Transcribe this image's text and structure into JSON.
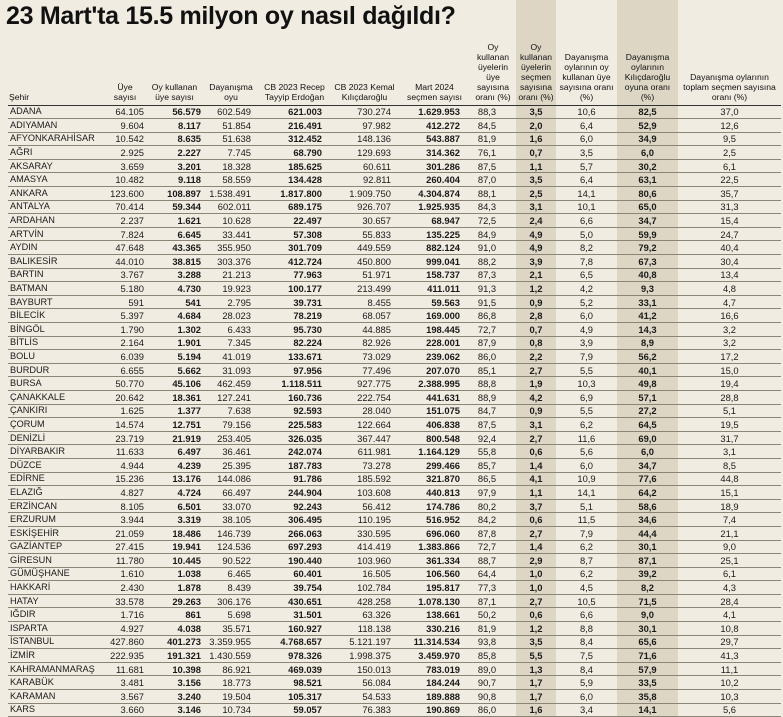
{
  "title": "23 Mart'ta 15.5 milyon oy nasıl dağıldı?",
  "headers": [
    "Şehir",
    "Üye sayısı",
    "Oy kullanan üye sayısı",
    "Dayanışma oyu",
    "CB 2023 Recep Tayyip Erdoğan",
    "CB 2023 Kemal Kılıçdaroğlu",
    "Mart 2024 seçmen sayısı",
    "Oy kullanan üyelerin üye sayısına oranı (%)",
    "Oy kullanan üyelerin seçmen sayısına oranı (%)",
    "Dayanışma oylarının oy kullanan üye sayısına oranı (%)",
    "Dayanışma oylarının Kılıçdaroğlu oyuna oranı (%)",
    "Dayanışma oylarının toplam seçmen sayısına oranı (%)"
  ],
  "rows": [
    [
      "ADANA",
      "64.105",
      "56.579",
      "602.549",
      "621.003",
      "730.274",
      "1.629.953",
      "88,3",
      "3,5",
      "10,6",
      "82,5",
      "37,0"
    ],
    [
      "ADIYAMAN",
      "9.604",
      "8.117",
      "51.854",
      "216.491",
      "97.982",
      "412.272",
      "84,5",
      "2,0",
      "6,4",
      "52,9",
      "12,6"
    ],
    [
      "AFYONKARAHİSAR",
      "10.542",
      "8.635",
      "51.638",
      "312.452",
      "148.136",
      "543.887",
      "81,9",
      "1,6",
      "6,0",
      "34,9",
      "9,5"
    ],
    [
      "AĞRI",
      "2.925",
      "2.227",
      "7.745",
      "68.790",
      "129.693",
      "314.362",
      "76,1",
      "0,7",
      "3,5",
      "6,0",
      "2,5"
    ],
    [
      "AKSARAY",
      "3.659",
      "3.201",
      "18.328",
      "185.625",
      "60.611",
      "301.286",
      "87,5",
      "1,1",
      "5,7",
      "30,2",
      "6,1"
    ],
    [
      "AMASYA",
      "10.482",
      "9.118",
      "58.559",
      "134.428",
      "92.811",
      "260.404",
      "87,0",
      "3,5",
      "6,4",
      "63,1",
      "22,5"
    ],
    [
      "ANKARA",
      "123.600",
      "108.897",
      "1.538.491",
      "1.817.800",
      "1.909.750",
      "4.304.874",
      "88,1",
      "2,5",
      "14,1",
      "80,6",
      "35,7"
    ],
    [
      "ANTALYA",
      "70.414",
      "59.344",
      "602.011",
      "689.175",
      "926.707",
      "1.925.935",
      "84,3",
      "3,1",
      "10,1",
      "65,0",
      "31,3"
    ],
    [
      "ARDAHAN",
      "2.237",
      "1.621",
      "10.628",
      "22.497",
      "30.657",
      "68.947",
      "72,5",
      "2,4",
      "6,6",
      "34,7",
      "15,4"
    ],
    [
      "ARTVİN",
      "7.824",
      "6.645",
      "33.441",
      "57.308",
      "55.833",
      "135.225",
      "84,9",
      "4,9",
      "5,0",
      "59,9",
      "24,7"
    ],
    [
      "AYDIN",
      "47.648",
      "43.365",
      "355.950",
      "301.709",
      "449.559",
      "882.124",
      "91,0",
      "4,9",
      "8,2",
      "79,2",
      "40,4"
    ],
    [
      "BALIKESİR",
      "44.010",
      "38.815",
      "303.376",
      "412.724",
      "450.800",
      "999.041",
      "88,2",
      "3,9",
      "7,8",
      "67,3",
      "30,4"
    ],
    [
      "BARTIN",
      "3.767",
      "3.288",
      "21.213",
      "77.963",
      "51.971",
      "158.737",
      "87,3",
      "2,1",
      "6,5",
      "40,8",
      "13,4"
    ],
    [
      "BATMAN",
      "5.180",
      "4.730",
      "19.923",
      "100.177",
      "213.499",
      "411.011",
      "91,3",
      "1,2",
      "4,2",
      "9,3",
      "4,8"
    ],
    [
      "BAYBURT",
      "591",
      "541",
      "2.795",
      "39.731",
      "8.455",
      "59.563",
      "91,5",
      "0,9",
      "5,2",
      "33,1",
      "4,7"
    ],
    [
      "BİLECİK",
      "5.397",
      "4.684",
      "28.023",
      "78.219",
      "68.057",
      "169.000",
      "86,8",
      "2,8",
      "6,0",
      "41,2",
      "16,6"
    ],
    [
      "BİNGÖL",
      "1.790",
      "1.302",
      "6.433",
      "95.730",
      "44.885",
      "198.445",
      "72,7",
      "0,7",
      "4,9",
      "14,3",
      "3,2"
    ],
    [
      "BİTLİS",
      "2.164",
      "1.901",
      "7.345",
      "82.224",
      "82.926",
      "228.001",
      "87,9",
      "0,8",
      "3,9",
      "8,9",
      "3,2"
    ],
    [
      "BOLU",
      "6.039",
      "5.194",
      "41.019",
      "133.671",
      "73.029",
      "239.062",
      "86,0",
      "2,2",
      "7,9",
      "56,2",
      "17,2"
    ],
    [
      "BURDUR",
      "6.655",
      "5.662",
      "31.093",
      "97.956",
      "77.496",
      "207.070",
      "85,1",
      "2,7",
      "5,5",
      "40,1",
      "15,0"
    ],
    [
      "BURSA",
      "50.770",
      "45.106",
      "462.459",
      "1.118.511",
      "927.775",
      "2.388.995",
      "88,8",
      "1,9",
      "10,3",
      "49,8",
      "19,4"
    ],
    [
      "ÇANAKKALE",
      "20.642",
      "18.361",
      "127.241",
      "160.736",
      "222.754",
      "441.631",
      "88,9",
      "4,2",
      "6,9",
      "57,1",
      "28,8"
    ],
    [
      "ÇANKIRI",
      "1.625",
      "1.377",
      "7.638",
      "92.593",
      "28.040",
      "151.075",
      "84,7",
      "0,9",
      "5,5",
      "27,2",
      "5,1"
    ],
    [
      "ÇORUM",
      "14.574",
      "12.751",
      "79.156",
      "225.583",
      "122.664",
      "406.838",
      "87,5",
      "3,1",
      "6,2",
      "64,5",
      "19,5"
    ],
    [
      "DENİZLİ",
      "23.719",
      "21.919",
      "253.405",
      "326.035",
      "367.447",
      "800.548",
      "92,4",
      "2,7",
      "11,6",
      "69,0",
      "31,7"
    ],
    [
      "DİYARBAKIR",
      "11.633",
      "6.497",
      "36.461",
      "242.074",
      "611.981",
      "1.164.129",
      "55,8",
      "0,6",
      "5,6",
      "6,0",
      "3,1"
    ],
    [
      "DÜZCE",
      "4.944",
      "4.239",
      "25.395",
      "187.783",
      "73.278",
      "299.466",
      "85,7",
      "1,4",
      "6,0",
      "34,7",
      "8,5"
    ],
    [
      "EDİRNE",
      "15.236",
      "13.176",
      "144.086",
      "91.786",
      "185.592",
      "321.870",
      "86,5",
      "4,1",
      "10,9",
      "77,6",
      "44,8"
    ],
    [
      "ELAZIĞ",
      "4.827",
      "4.724",
      "66.497",
      "244.904",
      "103.608",
      "440.813",
      "97,9",
      "1,1",
      "14,1",
      "64,2",
      "15,1"
    ],
    [
      "ERZİNCAN",
      "8.105",
      "6.501",
      "33.070",
      "92.243",
      "56.412",
      "174.786",
      "80,2",
      "3,7",
      "5,1",
      "58,6",
      "18,9"
    ],
    [
      "ERZURUM",
      "3.944",
      "3.319",
      "38.105",
      "306.495",
      "110.195",
      "516.952",
      "84,2",
      "0,6",
      "11,5",
      "34,6",
      "7,4"
    ],
    [
      "ESKİŞEHİR",
      "21.059",
      "18.486",
      "146.739",
      "266.063",
      "330.595",
      "696.060",
      "87,8",
      "2,7",
      "7,9",
      "44,4",
      "21,1"
    ],
    [
      "GAZİANTEP",
      "27.415",
      "19.941",
      "124.536",
      "697.293",
      "414.419",
      "1.383.866",
      "72,7",
      "1,4",
      "6,2",
      "30,1",
      "9,0"
    ],
    [
      "GİRESUN",
      "11.780",
      "10.445",
      "90.522",
      "190.440",
      "103.960",
      "361.334",
      "88,7",
      "2,9",
      "8,7",
      "87,1",
      "25,1"
    ],
    [
      "GÜMÜŞHANE",
      "1.610",
      "1.038",
      "6.465",
      "60.401",
      "16.505",
      "106.560",
      "64,4",
      "1,0",
      "6,2",
      "39,2",
      "6,1"
    ],
    [
      "HAKKARİ",
      "2.430",
      "1.878",
      "8.439",
      "39.754",
      "102.784",
      "195.817",
      "77,3",
      "1,0",
      "4,5",
      "8,2",
      "4,3"
    ],
    [
      "HATAY",
      "33.578",
      "29.263",
      "306.176",
      "430.651",
      "428.258",
      "1.078.130",
      "87,1",
      "2,7",
      "10,5",
      "71,5",
      "28,4"
    ],
    [
      "IĞDIR",
      "1.716",
      "861",
      "5.698",
      "31.501",
      "63.326",
      "138.661",
      "50,2",
      "0,6",
      "6,6",
      "9,0",
      "4,1"
    ],
    [
      "ISPARTA",
      "4.927",
      "4.038",
      "35.571",
      "160.927",
      "118.138",
      "330.216",
      "81,9",
      "1,2",
      "8,8",
      "30,1",
      "10,8"
    ],
    [
      "İSTANBUL",
      "427.860",
      "401.273",
      "3.359.955",
      "4.768.657",
      "5.121.197",
      "11.314.534",
      "93,8",
      "3,5",
      "8,4",
      "65,6",
      "29,7"
    ],
    [
      "İZMİR",
      "222.935",
      "191.321",
      "1.430.559",
      "978.326",
      "1.998.375",
      "3.459.970",
      "85,8",
      "5,5",
      "7,5",
      "71,6",
      "41,3"
    ],
    [
      "KAHRAMANMARAŞ",
      "11.681",
      "10.398",
      "86.921",
      "469.039",
      "150.013",
      "783.019",
      "89,0",
      "1,3",
      "8,4",
      "57,9",
      "11,1"
    ],
    [
      "KARABÜK",
      "3.481",
      "3.156",
      "18.773",
      "98.521",
      "56.084",
      "184.244",
      "90,7",
      "1,7",
      "5,9",
      "33,5",
      "10,2"
    ],
    [
      "KARAMAN",
      "3.567",
      "3.240",
      "19.504",
      "105.317",
      "54.533",
      "189.888",
      "90,8",
      "1,7",
      "6,0",
      "35,8",
      "10,3"
    ],
    [
      "KARS",
      "3.660",
      "3.146",
      "10.734",
      "59.057",
      "76.383",
      "190.869",
      "86,0",
      "1,6",
      "3,4",
      "14,1",
      "5,6"
    ]
  ]
}
